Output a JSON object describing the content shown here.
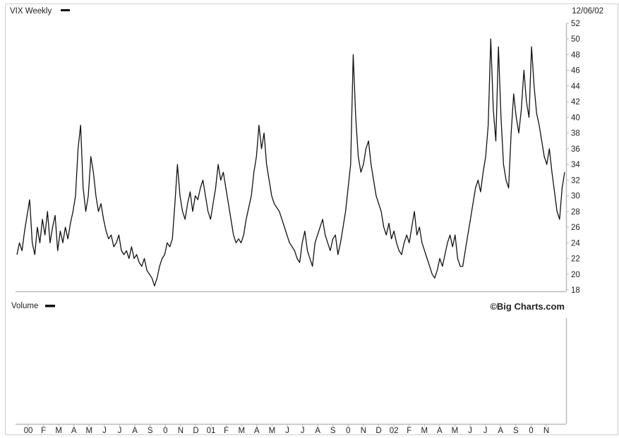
{
  "header": {
    "title": "VIX Weekly",
    "date": "12/06/02",
    "volume_label": "Volume",
    "copyright": "©Big Charts.com"
  },
  "chart_data": [
    {
      "type": "line",
      "title": "VIX Weekly",
      "xlabel": "",
      "ylabel": "",
      "ylim": [
        18,
        52
      ],
      "y_ticks": [
        18,
        20,
        22,
        24,
        26,
        28,
        30,
        32,
        34,
        36,
        38,
        40,
        42,
        44,
        46,
        48,
        50,
        52
      ],
      "x_tick_labels": [
        "00",
        "F",
        "M",
        "A",
        "M",
        "J",
        "J",
        "A",
        "S",
        "0",
        "N",
        "D",
        "01",
        "F",
        "M",
        "A",
        "M",
        "J",
        "J",
        "A",
        "S",
        "0",
        "N",
        "D",
        "02",
        "F",
        "M",
        "A",
        "M",
        "J",
        "J",
        "A",
        "S",
        "0",
        "N"
      ],
      "grid": false,
      "legend": "top-left",
      "line_color": "#111111",
      "series": [
        {
          "name": "VIX Weekly",
          "values": [
            22.5,
            24.0,
            23.0,
            25.5,
            27.5,
            29.5,
            24.0,
            22.5,
            26.0,
            24.0,
            27.0,
            25.0,
            28.0,
            24.0,
            26.0,
            27.5,
            23.0,
            25.5,
            24.0,
            26.0,
            24.5,
            26.5,
            28.0,
            30.0,
            36.0,
            39.0,
            31.0,
            28.0,
            30.0,
            35.0,
            33.0,
            30.0,
            28.0,
            29.0,
            27.0,
            25.5,
            24.5,
            25.0,
            23.5,
            24.0,
            25.0,
            23.0,
            22.5,
            23.0,
            22.0,
            23.5,
            22.0,
            22.5,
            21.5,
            21.0,
            22.0,
            20.5,
            20.0,
            19.5,
            18.5,
            19.5,
            21.0,
            22.0,
            22.5,
            24.0,
            23.5,
            24.5,
            29.0,
            34.0,
            30.0,
            28.0,
            27.0,
            29.0,
            30.5,
            28.0,
            30.0,
            29.5,
            31.0,
            32.0,
            30.0,
            28.0,
            27.0,
            29.0,
            31.0,
            34.0,
            32.0,
            33.0,
            31.0,
            29.0,
            27.0,
            25.0,
            24.0,
            24.5,
            24.0,
            25.0,
            27.0,
            28.5,
            30.0,
            33.0,
            35.0,
            39.0,
            36.0,
            38.0,
            34.0,
            32.0,
            30.0,
            29.0,
            28.5,
            28.0,
            27.0,
            26.0,
            25.0,
            24.0,
            23.5,
            23.0,
            22.0,
            21.5,
            24.0,
            25.5,
            23.0,
            22.0,
            21.0,
            24.0,
            25.0,
            26.0,
            27.0,
            25.0,
            24.0,
            23.0,
            24.5,
            25.0,
            22.5,
            24.0,
            26.0,
            28.0,
            31.0,
            34.0,
            48.0,
            40.0,
            35.0,
            33.0,
            34.0,
            36.0,
            37.0,
            34.0,
            32.0,
            30.0,
            29.0,
            28.0,
            26.0,
            25.0,
            26.5,
            24.5,
            25.5,
            24.0,
            23.0,
            22.5,
            24.0,
            25.0,
            24.0,
            26.0,
            28.0,
            25.0,
            26.0,
            24.0,
            23.0,
            22.0,
            21.0,
            20.0,
            19.5,
            20.5,
            22.0,
            21.0,
            22.5,
            24.0,
            25.0,
            23.5,
            25.0,
            22.0,
            21.0,
            21.0,
            23.0,
            25.0,
            27.0,
            29.0,
            31.0,
            32.0,
            30.5,
            33.0,
            35.0,
            39.0,
            50.0,
            41.0,
            37.0,
            49.0,
            40.0,
            34.0,
            32.0,
            31.0,
            38.0,
            43.0,
            40.0,
            38.0,
            41.0,
            46.0,
            42.0,
            40.0,
            49.0,
            44.0,
            40.5,
            39.0,
            37.0,
            35.0,
            34.0,
            36.0,
            33.0,
            30.5,
            28.0,
            27.0,
            31.0,
            33.0
          ]
        }
      ]
    },
    {
      "type": "bar",
      "title": "Volume",
      "xlabel": "",
      "ylabel": "",
      "legend": "top-left",
      "values": []
    }
  ]
}
